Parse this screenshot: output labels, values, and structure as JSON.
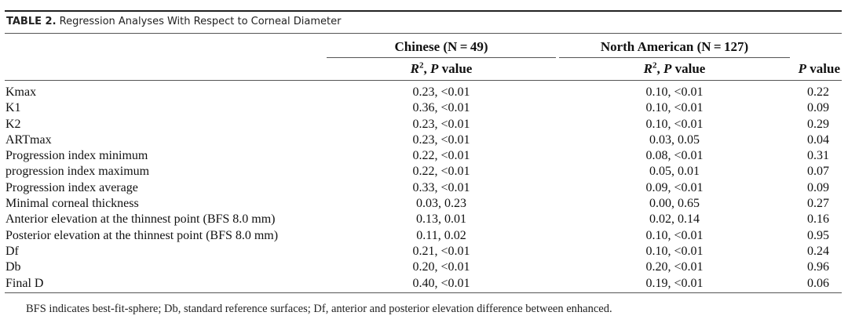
{
  "caption": {
    "label": "TABLE 2.",
    "text": "Regression Analyses With Respect to Corneal Diameter"
  },
  "headers": {
    "group1": "Chinese (N = 49)",
    "group2": "North American (N = 127)",
    "sub_r": "R",
    "sub_sup": "2",
    "sub_mid": ", ",
    "sub_p": "P",
    "sub_value": " value",
    "pvalue_p": "P",
    "pvalue_value": " value"
  },
  "rows": [
    {
      "label": "Kmax",
      "chinese": "0.23, <0.01",
      "north_american": "0.10, <0.01",
      "p": "0.22"
    },
    {
      "label": "K1",
      "chinese": "0.36, <0.01",
      "north_american": "0.10, <0.01",
      "p": "0.09"
    },
    {
      "label": "K2",
      "chinese": "0.23, <0.01",
      "north_american": "0.10, <0.01",
      "p": "0.29"
    },
    {
      "label": "ARTmax",
      "chinese": "0.23, <0.01",
      "north_american": "0.03, 0.05",
      "p": "0.04"
    },
    {
      "label": "Progression index minimum",
      "chinese": "0.22, <0.01",
      "north_american": "0.08, <0.01",
      "p": "0.31"
    },
    {
      "label": "progression index maximum",
      "chinese": "0.22, <0.01",
      "north_american": "0.05, 0.01",
      "p": "0.07"
    },
    {
      "label": "Progression index average",
      "chinese": "0.33, <0.01",
      "north_american": "0.09, <0.01",
      "p": "0.09"
    },
    {
      "label": "Minimal corneal thickness",
      "chinese": "0.03, 0.23",
      "north_american": "0.00, 0.65",
      "p": "0.27"
    },
    {
      "label": "Anterior elevation at the thinnest point (BFS 8.0 mm)",
      "chinese": "0.13, 0.01",
      "north_american": "0.02, 0.14",
      "p": "0.16"
    },
    {
      "label": "Posterior elevation at the thinnest point (BFS 8.0 mm)",
      "chinese": "0.11, 0.02",
      "north_american": "0.10, <0.01",
      "p": "0.95"
    },
    {
      "label": "Df",
      "chinese": "0.21, <0.01",
      "north_american": "0.10, <0.01",
      "p": "0.24"
    },
    {
      "label": "Db",
      "chinese": "0.20, <0.01",
      "north_american": "0.20, <0.01",
      "p": "0.96"
    },
    {
      "label": "Final D",
      "chinese": "0.40, <0.01",
      "north_american": "0.19, <0.01",
      "p": "0.06"
    }
  ],
  "footnote": "BFS indicates best-fit-sphere; Db, standard reference surfaces; Df, anterior and posterior elevation difference between enhanced."
}
